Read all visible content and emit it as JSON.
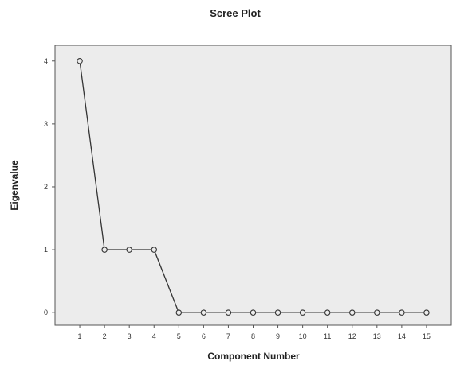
{
  "chart_data": {
    "type": "line",
    "title": "Scree Plot",
    "xlabel": "Component Number",
    "ylabel": "Eigenvalue",
    "x": [
      1,
      2,
      3,
      4,
      5,
      6,
      7,
      8,
      9,
      10,
      11,
      12,
      13,
      14,
      15
    ],
    "series": [
      {
        "values": [
          4,
          1,
          1,
          1,
          0,
          0,
          0,
          0,
          0,
          0,
          0,
          0,
          0,
          0,
          0
        ]
      }
    ],
    "xticks": [
      "1",
      "2",
      "3",
      "4",
      "5",
      "6",
      "7",
      "8",
      "9",
      "10",
      "11",
      "12",
      "13",
      "14",
      "15"
    ],
    "yticks": [
      "0",
      "1",
      "2",
      "3",
      "4"
    ],
    "ylim": [
      -0.2,
      4.25
    ],
    "xlim": [
      0,
      16
    ],
    "markers": "open-circle",
    "grid": false,
    "colors": {
      "plot_background": "#ececec",
      "line": "#333333",
      "frame": "#555555"
    }
  }
}
